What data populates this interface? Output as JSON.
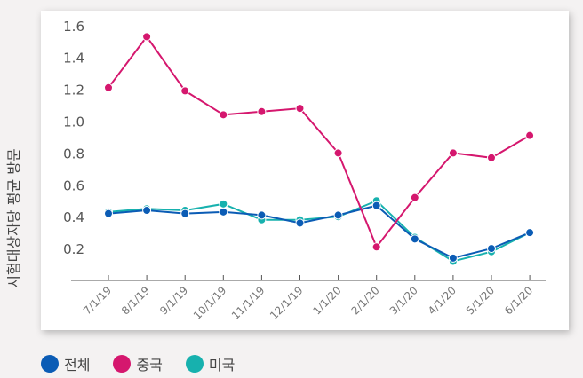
{
  "chart_data": {
    "type": "line",
    "ylabel": "시험대상자당 평균 방문",
    "categories": [
      "7/1/19",
      "8/1/19",
      "9/1/19",
      "10/1/19",
      "11/1/19",
      "12/1/19",
      "1/1/20",
      "2/1/20",
      "3/1/20",
      "4/1/20",
      "5/1/20",
      "6/1/20"
    ],
    "yticks": [
      "0.2",
      "0.4",
      "0.6",
      "0.8",
      "1.0",
      "1.2",
      "1.4",
      "1.6"
    ],
    "ylim": [
      0,
      1.6
    ],
    "grid": false,
    "legend_position": "bottom",
    "series": [
      {
        "name": "전체",
        "color": "#0b5cb5",
        "values": [
          0.42,
          0.44,
          0.42,
          0.43,
          0.41,
          0.36,
          0.41,
          0.47,
          0.26,
          0.14,
          0.2,
          0.3
        ]
      },
      {
        "name": "중국",
        "color": "#d5176e",
        "values": [
          1.21,
          1.53,
          1.19,
          1.04,
          1.06,
          1.08,
          0.8,
          0.21,
          0.52,
          0.8,
          0.77,
          0.91
        ]
      },
      {
        "name": "미국",
        "color": "#17b1ae",
        "values": [
          0.43,
          0.45,
          0.44,
          0.48,
          0.38,
          0.38,
          0.4,
          0.5,
          0.27,
          0.12,
          0.18,
          0.3
        ]
      }
    ]
  }
}
